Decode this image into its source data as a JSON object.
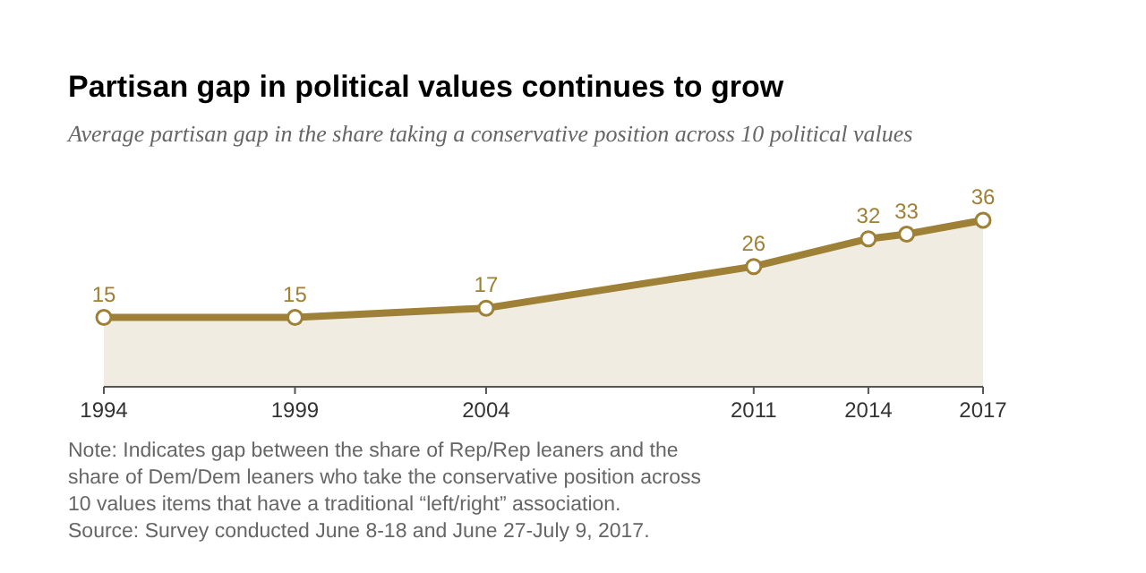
{
  "chart_data": {
    "type": "area",
    "title": "Partisan gap in political values continues to grow",
    "subtitle": "Average partisan gap in the share taking a conservative position across 10 political values",
    "x": [
      1994,
      1999,
      2004,
      2011,
      2014,
      2015,
      2017
    ],
    "series": [
      {
        "color": "#9e8136",
        "values": [
          15,
          15,
          17,
          26,
          32,
          33,
          36
        ]
      }
    ],
    "xlim": [
      1994,
      2017
    ],
    "xticks": [
      1994,
      1999,
      2004,
      2011,
      2014,
      2017
    ],
    "tick_labels": "x",
    "grid": false,
    "marker": "circle",
    "line_style": "solid",
    "data_labels": true,
    "annotations": [
      "Note: Indicates gap between the share of Rep/Rep leaners and the share of Dem/Dem leaners who take the conservative position across 10 values items that have a traditional “left/right” association.",
      "Source: Survey conducted June 8-18 and June 27-July 9, 2017."
    ]
  }
}
